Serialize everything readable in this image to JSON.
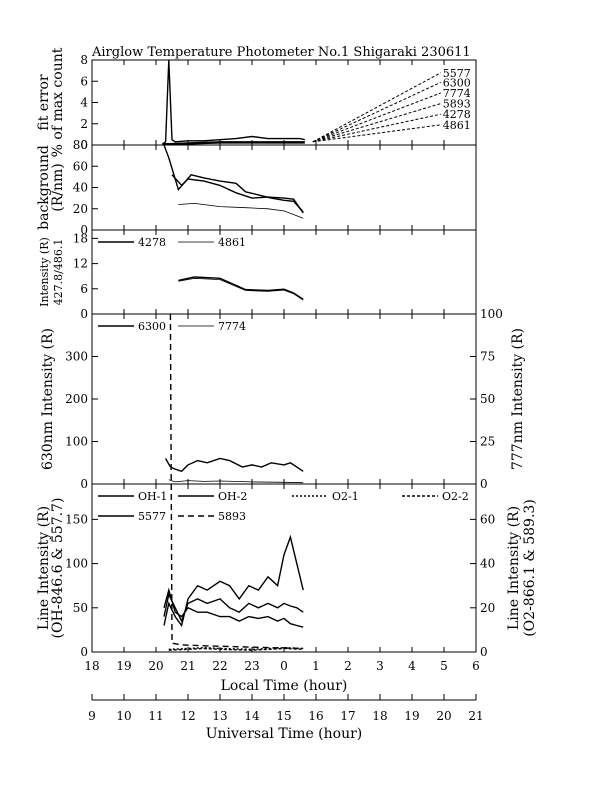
{
  "chart_data": {
    "type": "line",
    "title": "Airglow Temperature Photometer No.1  Shigaraki  230611",
    "x_axes": {
      "local": {
        "label": "Local Time (hour)",
        "range": [
          18,
          30
        ],
        "tick_labels": [
          "18",
          "19",
          "20",
          "21",
          "22",
          "23",
          "0",
          "1",
          "2",
          "3",
          "4",
          "5",
          "6"
        ]
      },
      "ut": {
        "label": "Universal Time (hour)",
        "range": [
          9,
          21
        ],
        "tick_labels": [
          "9",
          "10",
          "11",
          "12",
          "13",
          "14",
          "15",
          "16",
          "17",
          "18",
          "19",
          "20",
          "21"
        ]
      }
    },
    "panels": [
      {
        "id": "fit-error",
        "ylabel": [
          "fit error",
          "% of max count"
        ],
        "ylim": [
          0,
          8
        ],
        "yticks": [
          "0",
          "2",
          "4",
          "6",
          "8"
        ],
        "labels": [
          "5577",
          "6300",
          "7774",
          "5893",
          "4278",
          "4861"
        ],
        "label_y": [
          6.8,
          5.9,
          4.9,
          3.9,
          2.9,
          1.9
        ],
        "series": [
          {
            "values": [
              [
                20.2,
                0.1
              ],
              [
                20.3,
                0.3
              ],
              [
                20.4,
                8.0
              ],
              [
                20.5,
                0.5
              ],
              [
                20.6,
                0.3
              ],
              [
                21,
                0.4
              ],
              [
                21.5,
                0.4
              ],
              [
                22,
                0.5
              ],
              [
                22.5,
                0.6
              ],
              [
                23,
                0.8
              ],
              [
                23.5,
                0.6
              ],
              [
                24,
                0.6
              ],
              [
                24.5,
                0.6
              ],
              [
                24.65,
                0.5
              ]
            ]
          },
          {
            "values": [
              [
                20.2,
                0.1
              ],
              [
                21,
                0.2
              ],
              [
                22,
                0.3
              ],
              [
                23,
                0.3
              ],
              [
                24,
                0.3
              ],
              [
                24.65,
                0.3
              ]
            ]
          },
          {
            "values": [
              [
                20.2,
                0.1
              ],
              [
                21,
                0.1
              ],
              [
                22,
                0.2
              ],
              [
                23,
                0.2
              ],
              [
                24,
                0.2
              ],
              [
                24.65,
                0.2
              ]
            ]
          }
        ]
      },
      {
        "id": "background",
        "ylabel": [
          "background",
          "(R/nm)"
        ],
        "ylim": [
          0,
          80
        ],
        "yticks": [
          "0",
          "20",
          "40",
          "60",
          "80"
        ],
        "series": [
          {
            "values": [
              [
                20.25,
                80
              ],
              [
                20.4,
                68
              ],
              [
                20.7,
                38
              ],
              [
                20.9,
                45
              ],
              [
                21.1,
                52
              ],
              [
                21.5,
                49
              ],
              [
                22,
                46
              ],
              [
                22.5,
                44
              ],
              [
                22.8,
                36
              ],
              [
                23.2,
                33
              ],
              [
                23.6,
                30
              ],
              [
                24,
                28
              ],
              [
                24.3,
                27
              ],
              [
                24.6,
                17
              ]
            ]
          },
          {
            "values": [
              [
                20.5,
                52
              ],
              [
                20.8,
                42
              ],
              [
                21,
                48
              ],
              [
                21.5,
                46
              ],
              [
                22,
                42
              ],
              [
                22.5,
                35
              ],
              [
                23,
                30
              ],
              [
                23.5,
                31
              ],
              [
                24,
                30
              ],
              [
                24.3,
                29
              ],
              [
                24.6,
                16
              ]
            ]
          },
          {
            "values": [
              [
                20.7,
                24
              ],
              [
                21.2,
                25
              ],
              [
                22,
                22
              ],
              [
                22.8,
                21
              ],
              [
                23.5,
                20
              ],
              [
                24,
                18
              ],
              [
                24.6,
                11
              ]
            ]
          }
        ]
      },
      {
        "id": "intensity-4278",
        "ylabel": [
          "Intensity (R)",
          "427.8/486.1"
        ],
        "ylim": [
          0,
          20
        ],
        "yticks": [
          "0",
          "6",
          "12",
          "18"
        ],
        "legend": [
          "4278",
          "4861"
        ],
        "series": [
          {
            "name": "4278",
            "values": [
              [
                20.7,
                8.0
              ],
              [
                21.2,
                8.8
              ],
              [
                22,
                8.5
              ],
              [
                22.8,
                5.8
              ],
              [
                23.5,
                5.6
              ],
              [
                24,
                5.9
              ],
              [
                24.3,
                5.0
              ],
              [
                24.6,
                3.5
              ]
            ]
          },
          {
            "name": "4861",
            "values": [
              [
                20.7,
                7.8
              ],
              [
                21.2,
                8.5
              ],
              [
                22,
                8.2
              ],
              [
                22.8,
                5.6
              ],
              [
                23.5,
                5.4
              ],
              [
                24,
                5.7
              ],
              [
                24.3,
                4.8
              ],
              [
                24.6,
                3.3
              ]
            ]
          }
        ]
      },
      {
        "id": "intensity-630",
        "ylabel": [
          "630nm Intensity (R)"
        ],
        "ylabel_right": "777nm Intensity (R)",
        "ylim": [
          0,
          400
        ],
        "yticks": [
          "0",
          "100",
          "200",
          "300"
        ],
        "ylim_right": [
          0,
          100
        ],
        "yticks_right": [
          "0",
          "25",
          "50",
          "75",
          "100"
        ],
        "legend": [
          "6300",
          "7774"
        ],
        "series": [
          {
            "name": "6300",
            "values": [
              [
                20.3,
                60
              ],
              [
                20.45,
                40
              ],
              [
                20.6,
                35
              ],
              [
                20.8,
                30
              ],
              [
                21,
                45
              ],
              [
                21.3,
                55
              ],
              [
                21.6,
                50
              ],
              [
                22,
                60
              ],
              [
                22.3,
                55
              ],
              [
                22.7,
                40
              ],
              [
                23,
                45
              ],
              [
                23.3,
                40
              ],
              [
                23.6,
                50
              ],
              [
                24,
                45
              ],
              [
                24.2,
                50
              ],
              [
                24.6,
                30
              ]
            ]
          },
          {
            "name": "7774",
            "values": [
              [
                20.4,
                10
              ],
              [
                20.6,
                5
              ],
              [
                21,
                8
              ],
              [
                21.5,
                6
              ],
              [
                22,
                7
              ],
              [
                23,
                5
              ],
              [
                24,
                4
              ],
              [
                24.6,
                3
              ]
            ]
          }
        ]
      },
      {
        "id": "line-intensity",
        "ylabel": [
          "Line Intensity (R)",
          "(OH-846.6 & 557.7)"
        ],
        "ylabel_right": [
          "Line Intensity (R)",
          "(O2-866.1 & 589.3)"
        ],
        "ylim": [
          0,
          190
        ],
        "yticks": [
          "0",
          "50",
          "100",
          "150"
        ],
        "ylim_right": [
          0,
          76
        ],
        "yticks_right": [
          "0",
          "20",
          "40",
          "60"
        ],
        "legend": [
          "OH-1",
          "OH-2",
          "O2-1",
          "O2-2",
          "5577",
          "5893"
        ],
        "series": [
          {
            "name": "OH-1",
            "values": [
              [
                20.25,
                30
              ],
              [
                20.4,
                55
              ],
              [
                20.6,
                40
              ],
              [
                20.8,
                30
              ],
              [
                21,
                60
              ],
              [
                21.3,
                75
              ],
              [
                21.6,
                70
              ],
              [
                22,
                80
              ],
              [
                22.3,
                75
              ],
              [
                22.6,
                60
              ],
              [
                22.9,
                75
              ],
              [
                23.2,
                70
              ],
              [
                23.5,
                85
              ],
              [
                23.8,
                75
              ],
              [
                24,
                110
              ],
              [
                24.2,
                130
              ],
              [
                24.4,
                100
              ],
              [
                24.6,
                70
              ]
            ]
          },
          {
            "name": "OH-2",
            "values": [
              [
                20.25,
                40
              ],
              [
                20.4,
                65
              ],
              [
                20.6,
                50
              ],
              [
                20.8,
                35
              ],
              [
                21,
                55
              ],
              [
                21.3,
                60
              ],
              [
                21.6,
                55
              ],
              [
                22,
                60
              ],
              [
                22.3,
                50
              ],
              [
                22.6,
                45
              ],
              [
                22.9,
                55
              ],
              [
                23.2,
                50
              ],
              [
                23.5,
                55
              ],
              [
                23.8,
                50
              ],
              [
                24,
                55
              ],
              [
                24.2,
                52
              ],
              [
                24.4,
                50
              ],
              [
                24.6,
                45
              ]
            ]
          },
          {
            "name": "O2-1",
            "values": [
              [
                20.4,
                3
              ],
              [
                21,
                4
              ],
              [
                21.5,
                5
              ],
              [
                22,
                4
              ],
              [
                23,
                3
              ],
              [
                24,
                5
              ],
              [
                24.6,
                4
              ]
            ]
          },
          {
            "name": "O2-2",
            "values": [
              [
                20.4,
                2
              ],
              [
                21,
                3
              ],
              [
                21.5,
                4
              ],
              [
                22,
                3
              ],
              [
                23,
                2
              ],
              [
                24,
                4
              ],
              [
                24.6,
                3
              ]
            ]
          },
          {
            "name": "5577",
            "values": [
              [
                20.25,
                50
              ],
              [
                20.4,
                70
              ],
              [
                20.6,
                45
              ],
              [
                20.8,
                40
              ],
              [
                21,
                50
              ],
              [
                21.3,
                45
              ],
              [
                21.6,
                45
              ],
              [
                22,
                40
              ],
              [
                22.3,
                40
              ],
              [
                22.6,
                35
              ],
              [
                22.9,
                40
              ],
              [
                23.2,
                38
              ],
              [
                23.5,
                40
              ],
              [
                23.8,
                35
              ],
              [
                24,
                38
              ],
              [
                24.2,
                32
              ],
              [
                24.4,
                30
              ],
              [
                24.6,
                28
              ]
            ]
          },
          {
            "name": "5893",
            "values": [
              [
                20.45,
                380
              ],
              [
                20.5,
                10
              ],
              [
                20.8,
                8
              ],
              [
                21.5,
                7
              ],
              [
                22.5,
                6
              ],
              [
                23.5,
                5
              ],
              [
                24.6,
                4
              ]
            ]
          }
        ]
      }
    ]
  }
}
